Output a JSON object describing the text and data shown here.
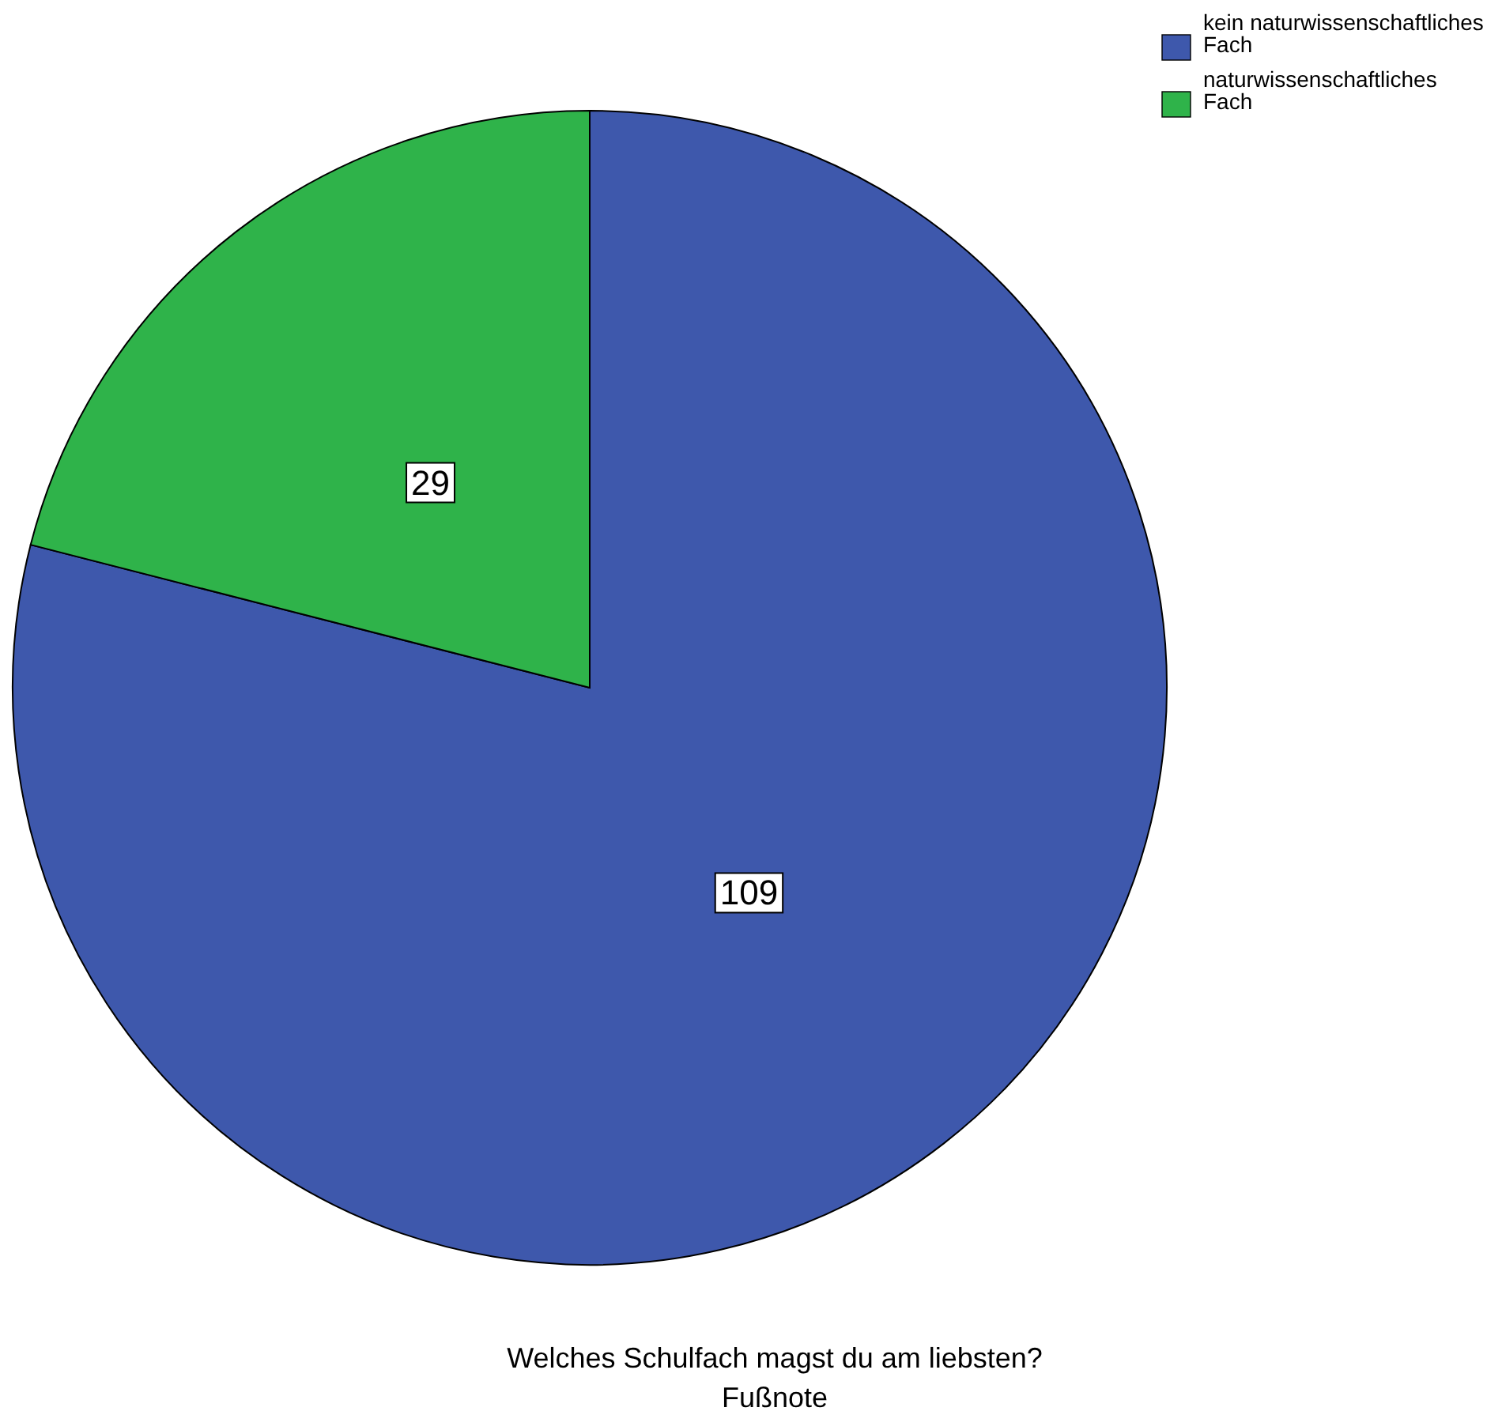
{
  "chart_data": {
    "type": "pie",
    "title": "Welches Schulfach magst du am liebsten?",
    "annotations": [
      "Fußnote"
    ],
    "categories": [
      "kein naturwissenschaftliches Fach",
      "naturwissenschaftliches Fach"
    ],
    "values": [
      109,
      29
    ],
    "colors": [
      "#3e58ac",
      "#2fb34a"
    ],
    "data_labels": true,
    "legend": "top right"
  }
}
